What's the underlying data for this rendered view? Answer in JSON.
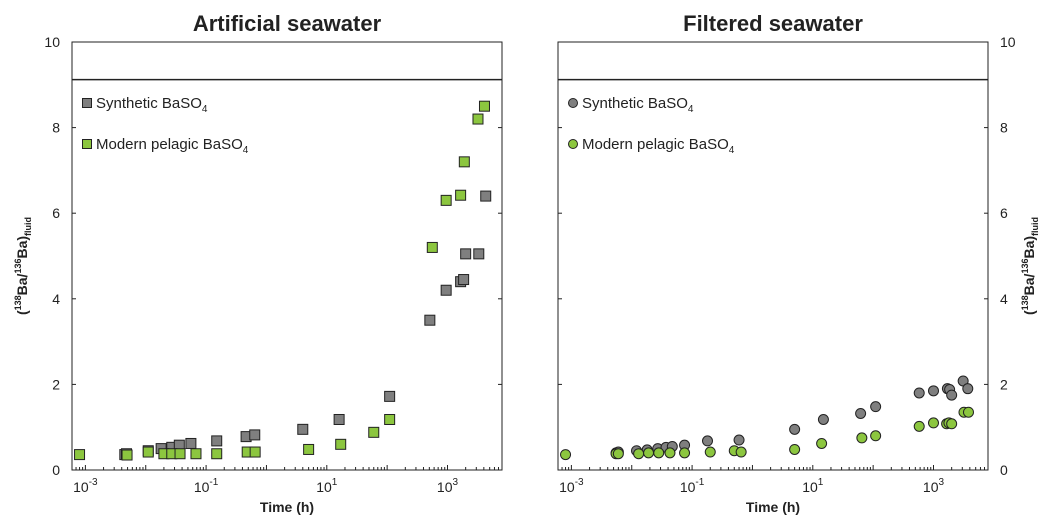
{
  "chart_data": [
    {
      "type": "scatter",
      "title": "Artificial seawater",
      "xlabel": "Time (h)",
      "ylabel": "(138Ba/136Ba)fluid",
      "ylabel_parts": {
        "open": "(",
        "sup1": "138",
        "mid": "Ba/",
        "sup2": "136",
        "close": "Ba)",
        "sub": "fluid"
      },
      "xscale": "log",
      "xlim": [
        0.0006,
        8000
      ],
      "ylim": [
        0,
        10
      ],
      "x_ticks": [
        {
          "base": "10",
          "exp": "-3",
          "value": 0.001
        },
        {
          "base": "10",
          "exp": "-1",
          "value": 0.1
        },
        {
          "base": "10",
          "exp": "1",
          "value": 10
        },
        {
          "base": "10",
          "exp": "3",
          "value": 1000
        }
      ],
      "y_ticks": [
        "0",
        "2",
        "4",
        "6",
        "8",
        "10"
      ],
      "reference_line_y": 9.12,
      "marker": "square",
      "legend_position": "top-left",
      "series": [
        {
          "name": "Synthetic BaSO4",
          "legend": {
            "main": "Synthetic BaSO",
            "sub": "4"
          },
          "color": "#7f7f7f",
          "points": [
            [
              0.0045,
              0.36
            ],
            [
              0.0048,
              0.38
            ],
            [
              0.011,
              0.45
            ],
            [
              0.018,
              0.5
            ],
            [
              0.027,
              0.53
            ],
            [
              0.036,
              0.58
            ],
            [
              0.056,
              0.62
            ],
            [
              0.15,
              0.68
            ],
            [
              0.46,
              0.78
            ],
            [
              0.64,
              0.82
            ],
            [
              4.0,
              0.95
            ],
            [
              16,
              1.18
            ],
            [
              110,
              1.72
            ],
            [
              510,
              3.5
            ],
            [
              950,
              4.2
            ],
            [
              1650,
              4.4
            ],
            [
              1850,
              4.45
            ],
            [
              2000,
              5.05
            ],
            [
              3300,
              5.05
            ],
            [
              4300,
              6.4
            ]
          ]
        },
        {
          "name": "Modern pelagic BaSO4",
          "legend": {
            "main": "Modern pelagic BaSO",
            "sub": "4"
          },
          "color": "#8cc63f",
          "points": [
            [
              0.0008,
              0.36
            ],
            [
              0.0049,
              0.35
            ],
            [
              0.011,
              0.42
            ],
            [
              0.02,
              0.38
            ],
            [
              0.027,
              0.38
            ],
            [
              0.037,
              0.38
            ],
            [
              0.068,
              0.38
            ],
            [
              0.15,
              0.38
            ],
            [
              0.48,
              0.42
            ],
            [
              0.65,
              0.42
            ],
            [
              5.0,
              0.48
            ],
            [
              17,
              0.6
            ],
            [
              60,
              0.88
            ],
            [
              110,
              1.18
            ],
            [
              560,
              5.2
            ],
            [
              950,
              6.3
            ],
            [
              1650,
              6.42
            ],
            [
              1900,
              7.2
            ],
            [
              3200,
              8.2
            ],
            [
              4100,
              8.5
            ]
          ]
        }
      ]
    },
    {
      "type": "scatter",
      "title": "Filtered seawater",
      "xlabel": "Time (h)",
      "ylabel": "(138Ba/136Ba)fluid",
      "ylabel_parts": {
        "open": "(",
        "sup1": "138",
        "mid": "Ba/",
        "sup2": "136",
        "close": "Ba)",
        "sub": "fluid"
      },
      "xscale": "log",
      "xlim": [
        0.0006,
        8000
      ],
      "ylim": [
        0,
        10
      ],
      "x_ticks": [
        {
          "base": "10",
          "exp": "-3",
          "value": 0.001
        },
        {
          "base": "10",
          "exp": "-1",
          "value": 0.1
        },
        {
          "base": "10",
          "exp": "1",
          "value": 10
        },
        {
          "base": "10",
          "exp": "3",
          "value": 1000
        }
      ],
      "y_ticks": [
        "0",
        "2",
        "4",
        "6",
        "8",
        "10"
      ],
      "reference_line_y": 9.12,
      "marker": "circle",
      "legend_position": "top-left",
      "series": [
        {
          "name": "Synthetic BaSO4",
          "legend": {
            "main": "Synthetic BaSO",
            "sub": "4"
          },
          "color": "#7f7f7f",
          "points": [
            [
              0.0055,
              0.4
            ],
            [
              0.006,
              0.42
            ],
            [
              0.012,
              0.45
            ],
            [
              0.018,
              0.47
            ],
            [
              0.027,
              0.5
            ],
            [
              0.037,
              0.53
            ],
            [
              0.047,
              0.55
            ],
            [
              0.075,
              0.58
            ],
            [
              0.18,
              0.68
            ],
            [
              0.6,
              0.7
            ],
            [
              5.0,
              0.95
            ],
            [
              15,
              1.18
            ],
            [
              62,
              1.32
            ],
            [
              110,
              1.48
            ],
            [
              580,
              1.8
            ],
            [
              1000,
              1.85
            ],
            [
              1700,
              1.9
            ],
            [
              1850,
              1.88
            ],
            [
              2000,
              1.75
            ],
            [
              3100,
              2.08
            ],
            [
              3700,
              1.9
            ]
          ]
        },
        {
          "name": "Modern pelagic BaSO4",
          "legend": {
            "main": "Modern pelagic BaSO",
            "sub": "4"
          },
          "color": "#8cc63f",
          "points": [
            [
              0.0008,
              0.36
            ],
            [
              0.0055,
              0.38
            ],
            [
              0.006,
              0.38
            ],
            [
              0.013,
              0.38
            ],
            [
              0.019,
              0.4
            ],
            [
              0.028,
              0.4
            ],
            [
              0.043,
              0.4
            ],
            [
              0.075,
              0.4
            ],
            [
              0.2,
              0.42
            ],
            [
              0.5,
              0.45
            ],
            [
              0.65,
              0.42
            ],
            [
              5.0,
              0.48
            ],
            [
              14,
              0.62
            ],
            [
              65,
              0.75
            ],
            [
              110,
              0.8
            ],
            [
              580,
              1.02
            ],
            [
              1000,
              1.1
            ],
            [
              1650,
              1.08
            ],
            [
              1800,
              1.1
            ],
            [
              2000,
              1.08
            ],
            [
              3200,
              1.35
            ],
            [
              3800,
              1.35
            ]
          ]
        }
      ]
    }
  ]
}
